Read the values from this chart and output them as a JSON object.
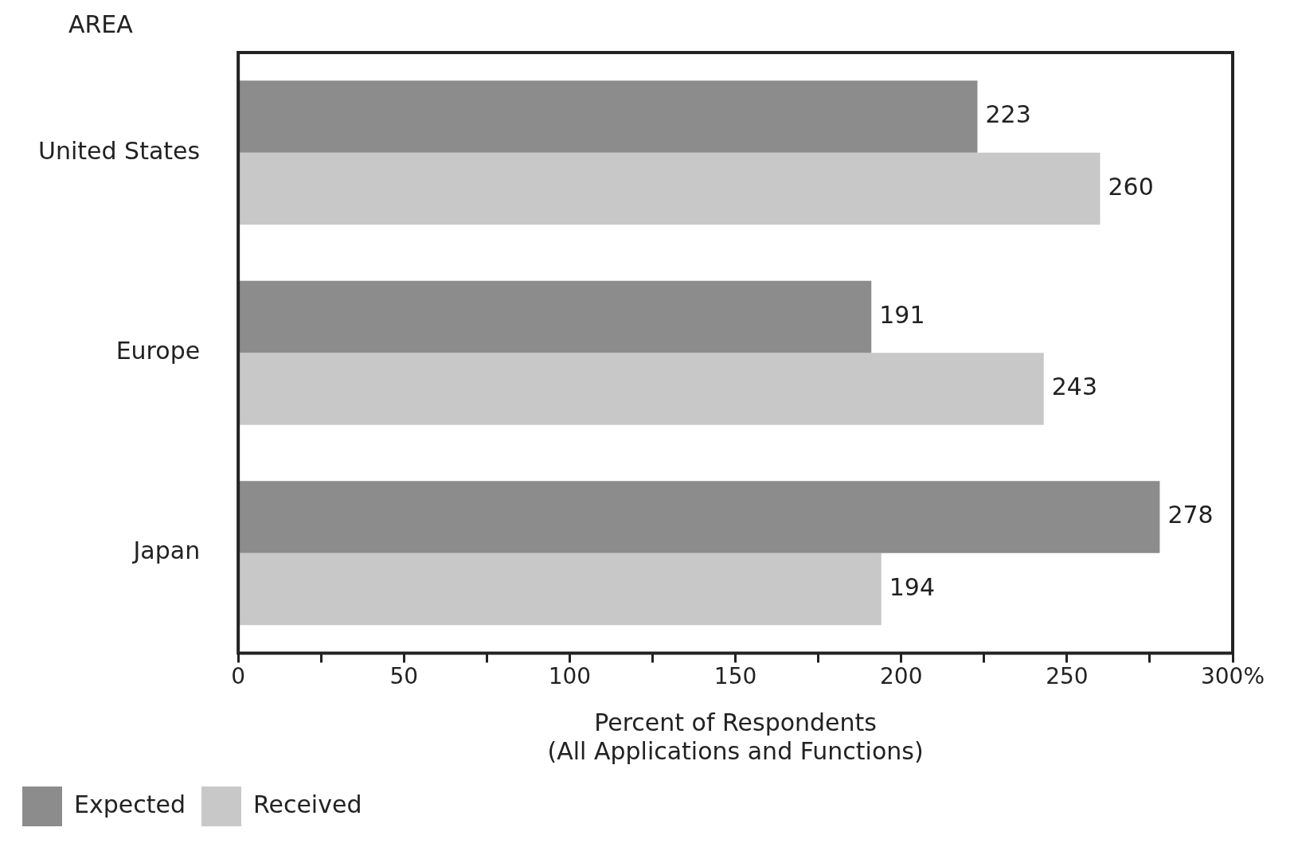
{
  "chart_data": {
    "type": "bar",
    "orientation": "horizontal",
    "ylabel": "AREA",
    "xlabel": "Percent of Respondents\n(All Applications and Functions)",
    "categories": [
      "United States",
      "Europe",
      "Japan"
    ],
    "series": [
      {
        "name": "Expected",
        "color": "#8c8c8c",
        "values": [
          223,
          191,
          278
        ]
      },
      {
        "name": "Received",
        "color": "#c8c8c8",
        "values": [
          260,
          243,
          194
        ]
      }
    ],
    "xlim": [
      0,
      300
    ],
    "xticks": [
      0,
      {
        "value": 25,
        "label": null
      },
      50,
      {
        "value": 75,
        "label": null
      },
      100,
      {
        "value": 125,
        "label": null
      },
      150,
      {
        "value": 175,
        "label": null
      },
      200,
      {
        "value": 225,
        "label": null
      },
      250,
      {
        "value": 275,
        "label": null
      },
      {
        "value": 300,
        "label": "300%"
      }
    ],
    "data_labels": true,
    "grid": false,
    "legend": "bottom left"
  }
}
